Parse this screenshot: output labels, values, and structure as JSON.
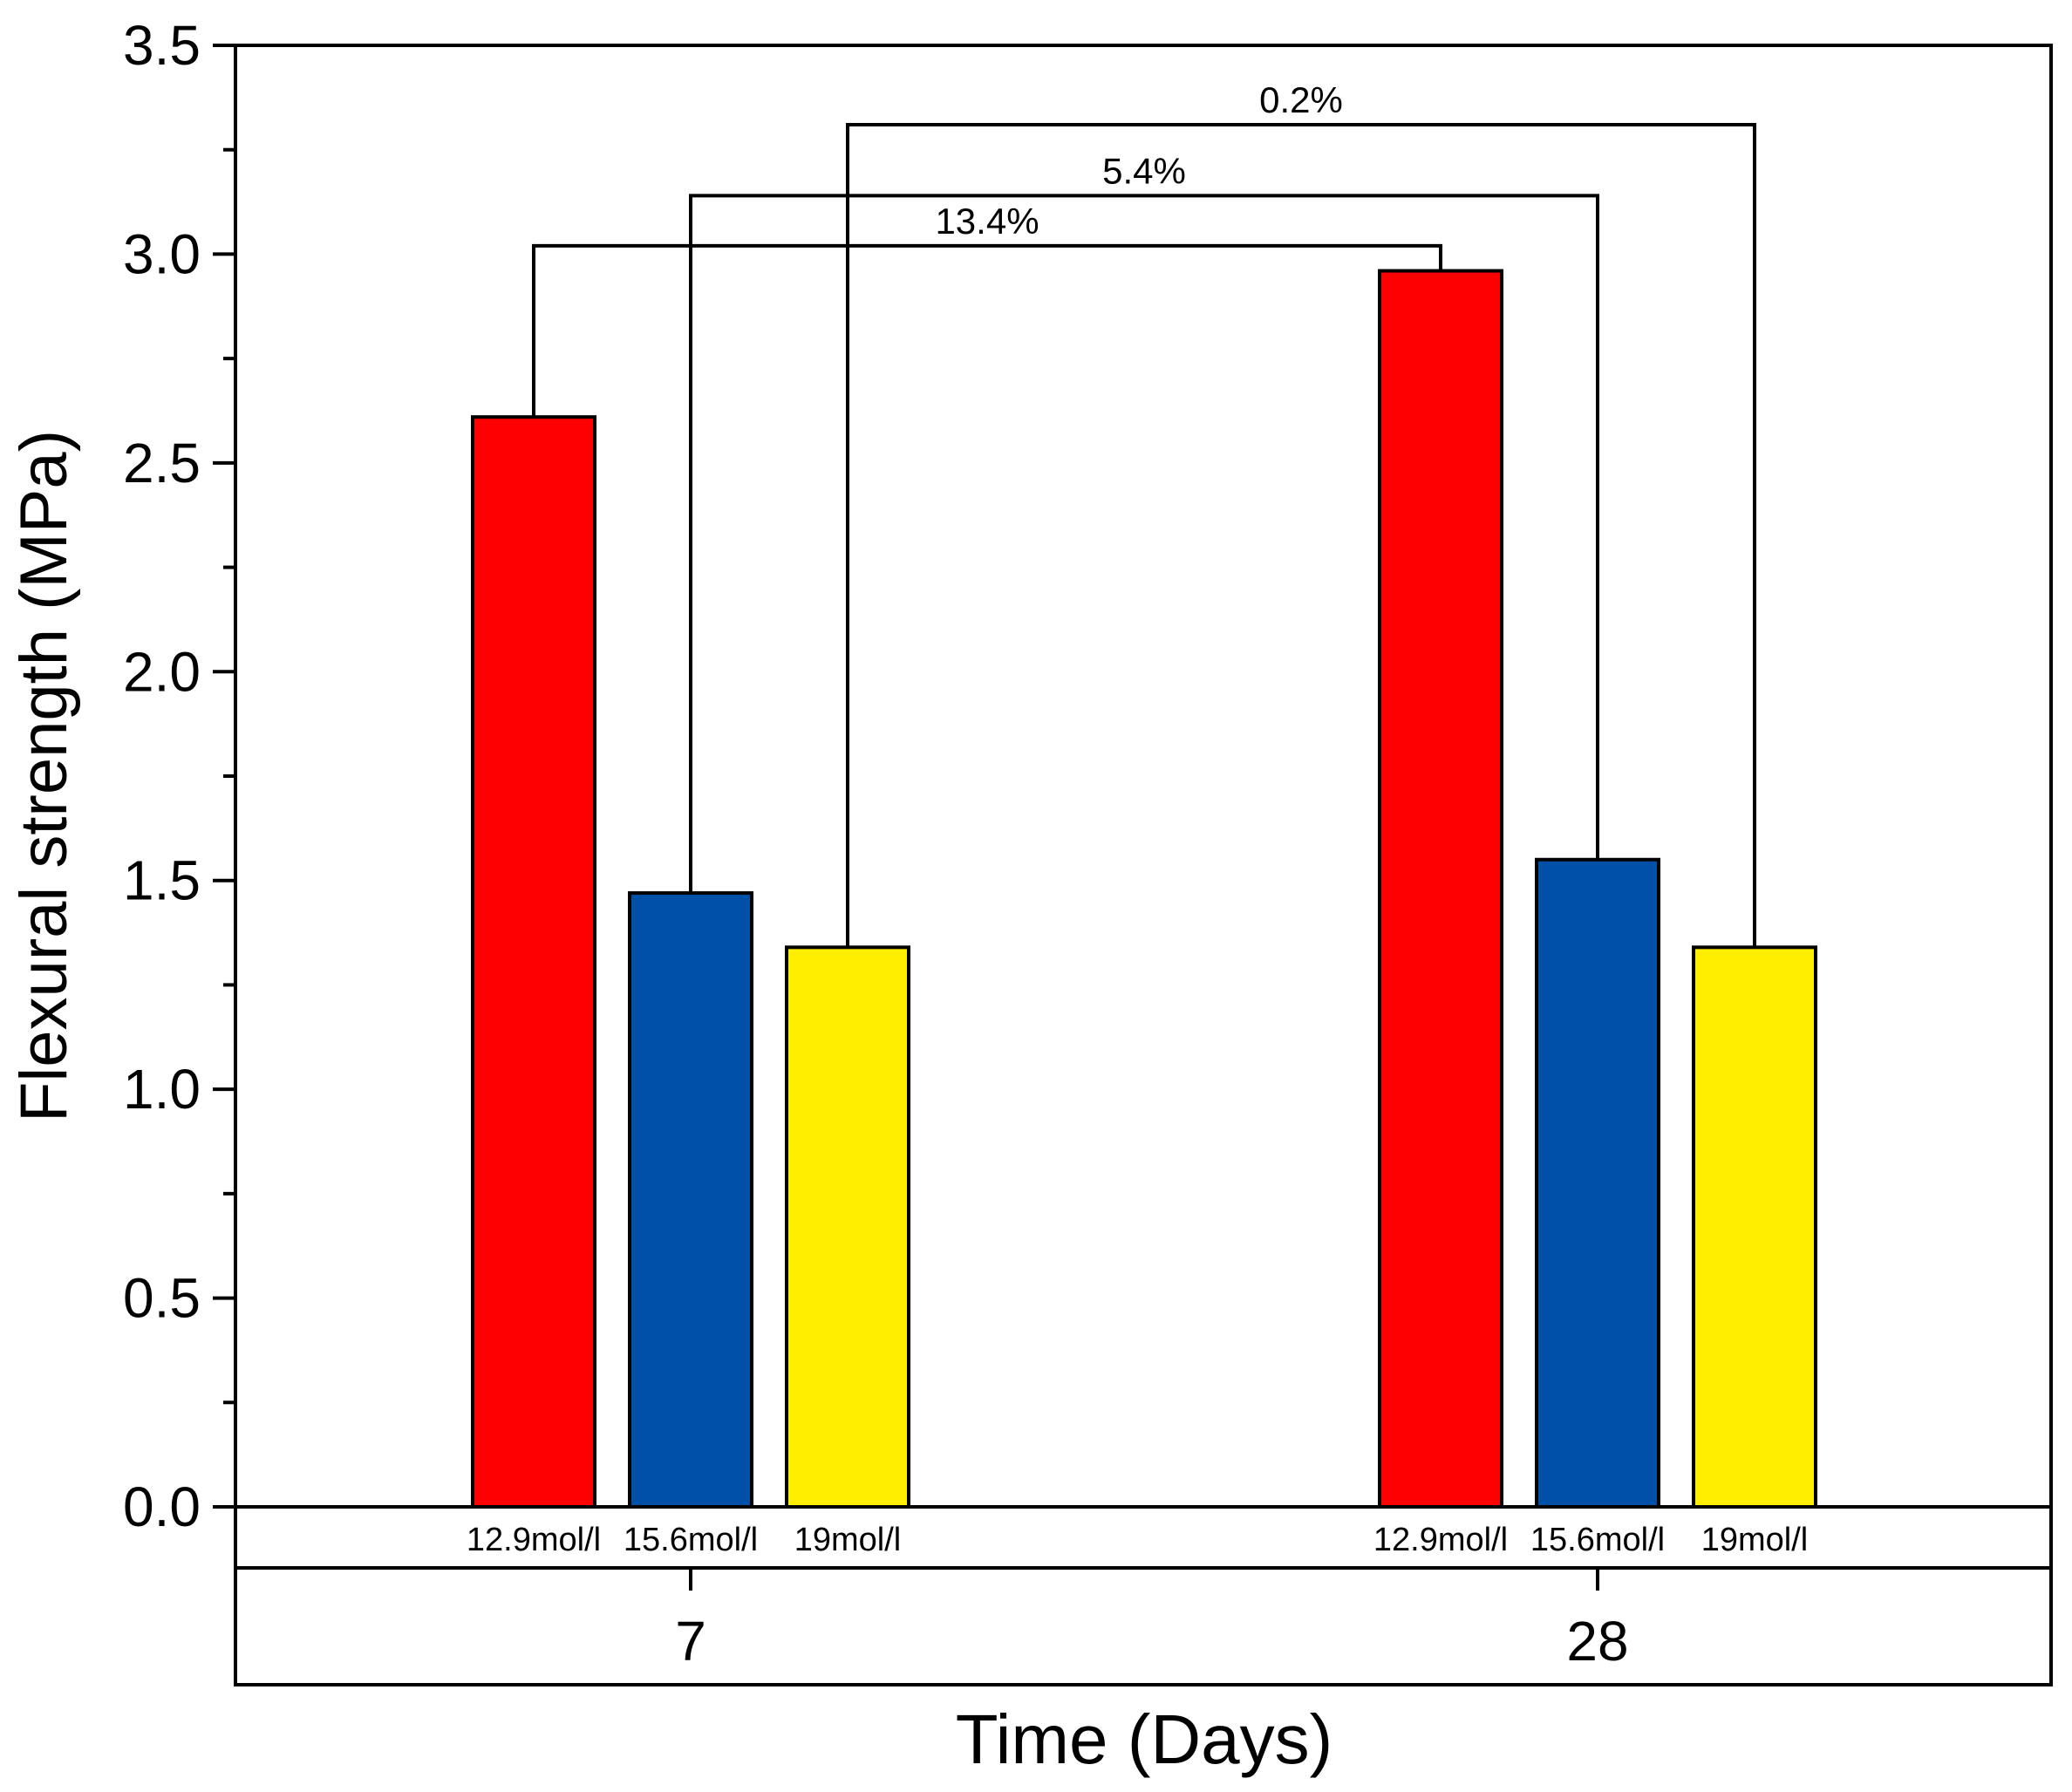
{
  "chart_data": {
    "type": "bar",
    "title": "",
    "xlabel": "Time (Days)",
    "ylabel": "Flexural strength (MPa)",
    "ylim": [
      0,
      3.5
    ],
    "yticks": [
      "0.0",
      "0.5",
      "1.0",
      "1.5",
      "2.0",
      "2.5",
      "3.0",
      "3.5"
    ],
    "categories": [
      "7",
      "28"
    ],
    "series": [
      {
        "name": "12.9mol/l",
        "color": "#ff0000",
        "values": [
          2.61,
          2.96
        ]
      },
      {
        "name": "15.6mol/l",
        "color": "#0050a8",
        "values": [
          1.47,
          1.55
        ]
      },
      {
        "name": "19mol/l",
        "color": "#ffee00",
        "values": [
          1.34,
          1.34
        ]
      }
    ],
    "annotations": [
      {
        "label": "13.4%",
        "series": "12.9mol/l",
        "bracket_level": 3.02
      },
      {
        "label": "5.4%",
        "series": "15.6mol/l",
        "bracket_level": 3.14
      },
      {
        "label": "0.2%",
        "series": "19mol/l",
        "bracket_level": 3.31
      }
    ]
  }
}
